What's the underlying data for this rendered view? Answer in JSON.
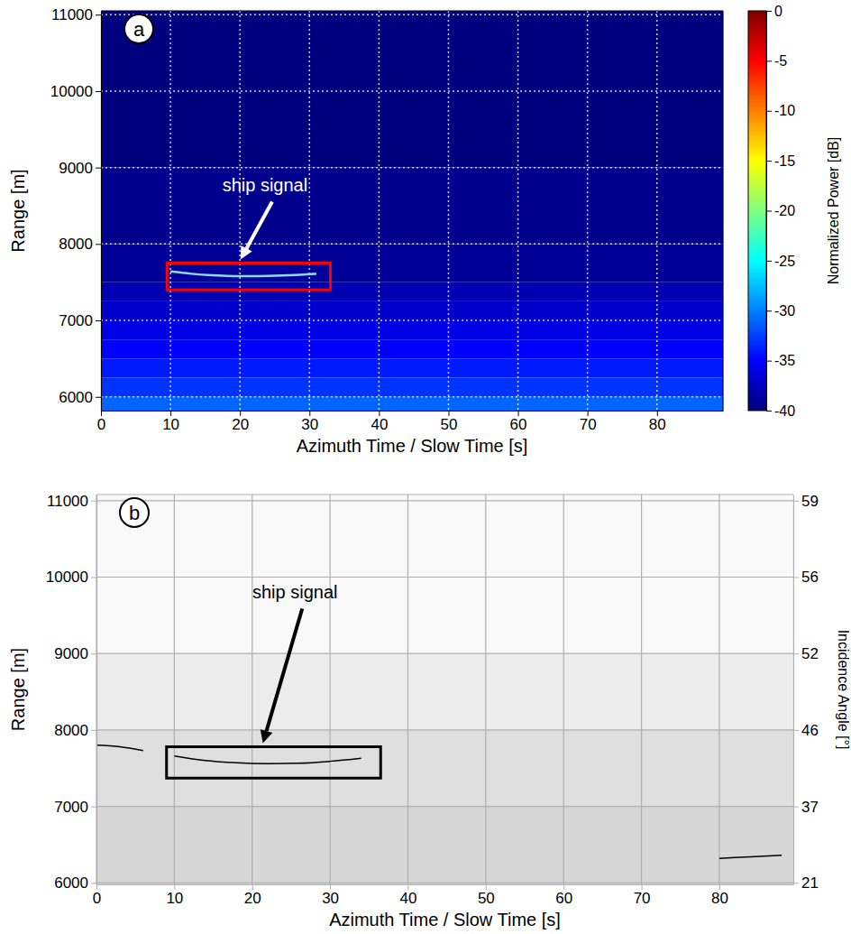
{
  "chart_data": [
    {
      "type": "heatmap",
      "label": "a",
      "xlabel": "Azimuth Time / Slow Time [s]",
      "ylabel": "Range [m]",
      "xlim": [
        0,
        89.5
      ],
      "ylim": [
        5820,
        11050
      ],
      "xticks": [
        0,
        10,
        20,
        30,
        40,
        50,
        60,
        70,
        80
      ],
      "yticks": [
        6000,
        7000,
        8000,
        9000,
        10000,
        11000
      ],
      "grid": true,
      "range_bins": [
        5820,
        6000,
        6250,
        6500,
        6750,
        7000,
        7250,
        7500,
        8000,
        9000,
        11050
      ],
      "power": [
        -31,
        -33,
        -34,
        -35,
        -36,
        -37,
        -38,
        -39,
        -39.5,
        -40
      ],
      "colorbar": {
        "label": "Normalized Power [dB]",
        "range": [
          -40,
          0
        ],
        "ticks": [
          0,
          -5,
          -10,
          -15,
          -20,
          -25,
          -30,
          -35,
          -40
        ]
      },
      "series": [
        {
          "color": "#8fd8ff",
          "x": [
            10,
            13,
            16,
            19,
            22,
            25,
            28,
            31
          ],
          "y": [
            7640,
            7610,
            7590,
            7580,
            7580,
            7585,
            7595,
            7610
          ]
        }
      ],
      "annotations": [
        {
          "text": "ship signal",
          "color": "#ff0000",
          "box": {
            "x": [
              9.5,
              33
            ],
            "y": [
              7400,
              7750
            ]
          }
        }
      ]
    },
    {
      "type": "line",
      "label": "b",
      "xlabel": "Azimuth Time / Slow Time [s]",
      "ylabel": "Range [m]",
      "y2label": "Incidence Angle [°]",
      "xlim": [
        0,
        89.5
      ],
      "ylim": [
        5980,
        11080
      ],
      "xticks": [
        0,
        10,
        20,
        30,
        40,
        50,
        60,
        70,
        80
      ],
      "yticks": [
        6000,
        7000,
        8000,
        9000,
        10000,
        11000
      ],
      "y2lim": [
        20.7,
        59.2
      ],
      "y2ticks": [
        21,
        37,
        46,
        52,
        56,
        59
      ],
      "grid": true,
      "clutter_bins": [
        5980,
        7000,
        8000,
        9000,
        11080
      ],
      "clutter_density": [
        0.25,
        0.2,
        0.12,
        0.04
      ],
      "series": [
        {
          "color": "#000000",
          "x": [
            10,
            14,
            18,
            22,
            26,
            30,
            34
          ],
          "y": [
            7660,
            7600,
            7570,
            7560,
            7565,
            7590,
            7630
          ]
        },
        {
          "color": "#000000",
          "x": [
            0,
            3,
            6
          ],
          "y": [
            7800,
            7780,
            7730
          ]
        },
        {
          "color": "#000000",
          "x": [
            80,
            84,
            88
          ],
          "y": [
            6320,
            6340,
            6360
          ]
        }
      ],
      "annotations": [
        {
          "text": "ship signal",
          "color": "#000000",
          "box": {
            "x": [
              9,
              36.5
            ],
            "y": [
              7370,
              7780
            ]
          }
        }
      ]
    }
  ]
}
